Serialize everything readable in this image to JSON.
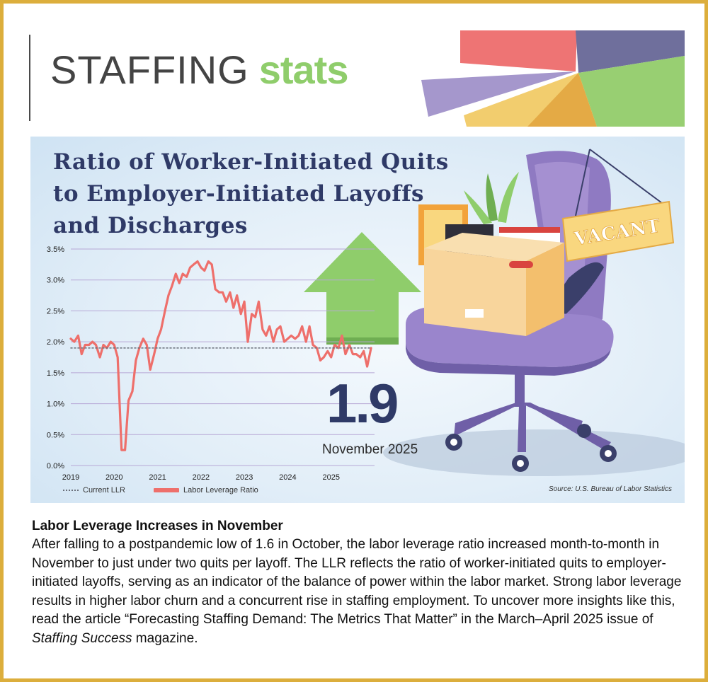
{
  "header": {
    "title_light": "STAFFING",
    "title_bold": "stats"
  },
  "colors": {
    "frame": "#dcae3c",
    "brand_green": "#8fcd6b",
    "title_navy": "#2f3a67",
    "line_red": "#ee6f6b",
    "chair_purple": "#8f7ac2",
    "arrow_green": "#8fcd6b"
  },
  "icons": [
    "banner-pie-graphic",
    "up-arrow-icon",
    "office-chair-illustration",
    "moving-box-icon",
    "vacant-sign-icon"
  ],
  "chart": {
    "sign_text": "VACANT",
    "big_value": "1.9",
    "big_value_caption": "November 2025",
    "source": "Source: U.S. Bureau of Labor Statistics"
  },
  "chart_data": {
    "type": "line",
    "title": "Ratio of Worker-Initiated Quits to Employer-Initiated Layoffs and Discharges",
    "x_ticks": [
      "2019",
      "2020",
      "2021",
      "2022",
      "2023",
      "2024",
      "2025"
    ],
    "y_ticks": [
      "0.0%",
      "0.5%",
      "1.0%",
      "1.5%",
      "2.0%",
      "2.5%",
      "3.0%",
      "3.5%"
    ],
    "ylim": [
      0,
      3.5
    ],
    "xlim": [
      2019.0,
      2026.0
    ],
    "grid": true,
    "legend_position": "bottom-left",
    "series": [
      {
        "name": "Labor Leverage Ratio",
        "color": "#ee6f6b",
        "style": "solid",
        "x": [
          2019.0,
          2019.08,
          2019.17,
          2019.25,
          2019.33,
          2019.42,
          2019.5,
          2019.58,
          2019.67,
          2019.75,
          2019.83,
          2019.92,
          2020.0,
          2020.08,
          2020.17,
          2020.25,
          2020.33,
          2020.42,
          2020.5,
          2020.58,
          2020.67,
          2020.75,
          2020.83,
          2020.92,
          2021.0,
          2021.08,
          2021.17,
          2021.25,
          2021.33,
          2021.42,
          2021.5,
          2021.58,
          2021.67,
          2021.75,
          2021.83,
          2021.92,
          2022.0,
          2022.08,
          2022.17,
          2022.25,
          2022.33,
          2022.42,
          2022.5,
          2022.58,
          2022.67,
          2022.75,
          2022.83,
          2022.92,
          2023.0,
          2023.08,
          2023.17,
          2023.25,
          2023.33,
          2023.42,
          2023.5,
          2023.58,
          2023.67,
          2023.75,
          2023.83,
          2023.92,
          2024.0,
          2024.08,
          2024.17,
          2024.25,
          2024.33,
          2024.42,
          2024.5,
          2024.58,
          2024.67,
          2024.75,
          2024.83,
          2024.92,
          2025.0,
          2025.08,
          2025.17,
          2025.25,
          2025.33,
          2025.42,
          2025.5,
          2025.58,
          2025.67,
          2025.75,
          2025.83,
          2025.92
        ],
        "values": [
          2.05,
          2.0,
          2.1,
          1.8,
          1.95,
          1.95,
          2.0,
          1.95,
          1.75,
          1.95,
          1.9,
          2.0,
          1.95,
          1.75,
          0.25,
          0.25,
          1.05,
          1.2,
          1.7,
          1.9,
          2.05,
          1.95,
          1.55,
          1.8,
          2.05,
          2.2,
          2.5,
          2.75,
          2.9,
          3.1,
          2.95,
          3.1,
          3.05,
          3.2,
          3.25,
          3.3,
          3.2,
          3.15,
          3.3,
          3.25,
          2.85,
          2.8,
          2.8,
          2.65,
          2.8,
          2.55,
          2.75,
          2.45,
          2.65,
          2.0,
          2.45,
          2.4,
          2.65,
          2.2,
          2.1,
          2.25,
          2.0,
          2.2,
          2.25,
          2.0,
          2.05,
          2.1,
          2.05,
          2.1,
          2.25,
          2.0,
          2.25,
          1.95,
          1.9,
          1.7,
          1.75,
          1.85,
          1.75,
          1.95,
          1.9,
          2.1,
          1.8,
          1.95,
          1.8,
          1.8,
          1.75,
          1.85,
          1.6,
          1.9
        ]
      },
      {
        "name": "Current LLR",
        "color": "#6a6f7a",
        "style": "dotted",
        "x": [
          2019.0,
          2025.92
        ],
        "values": [
          1.9,
          1.9
        ]
      }
    ]
  },
  "article": {
    "heading": "Labor Leverage Increases in November",
    "body_pre": "After falling to a postpandemic low of 1.6 in October, the labor leverage ratio increased month-to-month in November to just under two quits per layoff. The LLR reflects the ratio of worker-initiated quits to employer-initiated layoffs, serving as an indicator of the balance of power within the labor market. Strong labor leverage results in higher labor churn and a concurrent rise in staffing employment. To uncover more insights like this, read the article “Forecasting Staffing Demand: The Metrics That Matter” in the March–April 2025 issue of ",
    "body_italic": "Staffing Success",
    "body_post": " magazine."
  }
}
